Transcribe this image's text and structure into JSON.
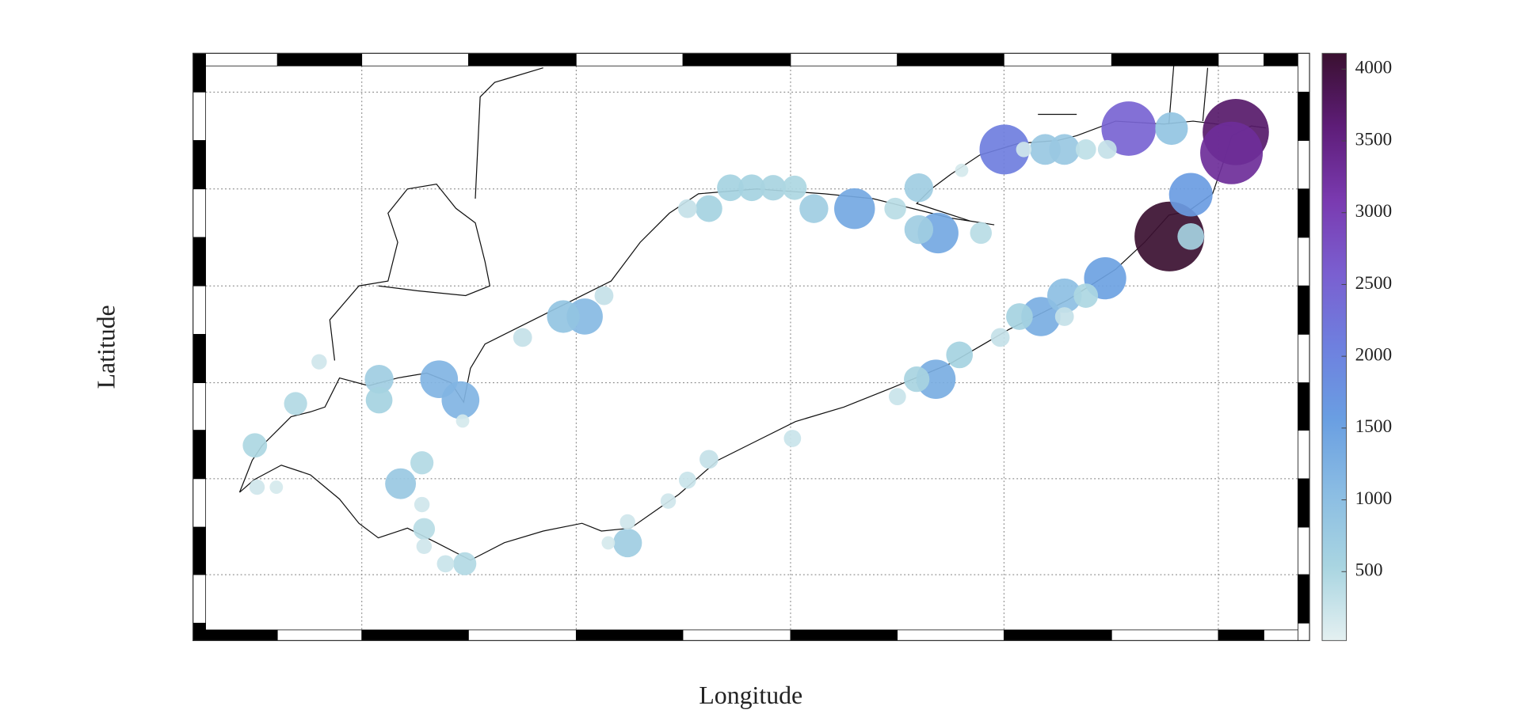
{
  "chart_data": {
    "type": "bubble",
    "x_label": "Longitude",
    "y_label": "Latitude",
    "xlim": [
      -83.73,
      -78.63
    ],
    "ylim": [
      41.28,
      42.9
    ],
    "zlim": [
      20,
      4110
    ],
    "zticks": [
      500,
      1000,
      1500,
      2000,
      2500,
      3000,
      3500,
      4000
    ],
    "grid": true,
    "colormap": [
      "#e4f0f1",
      "#a9d5e1",
      "#8bbde3",
      "#6a9fe2",
      "#6e80df",
      "#7a5fd0",
      "#7a3ab0",
      "#5e1d78",
      "#3a1030"
    ],
    "x": [
      -79.23,
      -78.92,
      -78.94,
      -79.42,
      -80.0,
      -79.13,
      -79.53,
      -80.31,
      -80.7,
      -80.32,
      -79.83,
      -82.64,
      -82.54,
      -81.96,
      -79.72,
      -82.06,
      -79.22,
      -79.72,
      -79.81,
      -80.4,
      -80.4,
      -80.89,
      -81.38,
      -81.28,
      -81.18,
      -81.08,
      -80.98,
      -82.92,
      -82.92,
      -82.82,
      -81.76,
      -80.21,
      -80.41,
      -79.62,
      -79.93,
      -79.13,
      -79.52,
      -83.5,
      -83.31,
      -82.72,
      -82.52,
      -82.71,
      -80.11,
      -80.51,
      -79.62,
      -80.02,
      -82.25,
      -81.87,
      -81.38,
      -80.99,
      -80.5,
      -82.61,
      -81.48,
      -79.72,
      -83.49,
      -81.57,
      -82.72,
      -82.71,
      -81.76,
      -79.91,
      -80.2,
      -82.53,
      -81.85,
      -83.4,
      -83.2,
      -81.48
    ],
    "y": [
      42.41,
      42.71,
      42.65,
      42.72,
      42.66,
      42.53,
      42.29,
      42.42,
      42.49,
      42.0,
      42.18,
      42.0,
      41.94,
      42.18,
      42.24,
      42.18,
      42.72,
      42.66,
      42.66,
      42.55,
      42.43,
      42.49,
      42.49,
      42.55,
      42.55,
      42.55,
      42.55,
      42.0,
      41.94,
      41.7,
      41.53,
      42.07,
      42.0,
      42.24,
      42.18,
      42.41,
      42.66,
      41.81,
      41.93,
      41.76,
      41.47,
      41.57,
      42.42,
      42.49,
      42.66,
      42.12,
      42.12,
      42.24,
      41.77,
      41.83,
      41.95,
      41.47,
      41.71,
      42.18,
      41.69,
      41.65,
      41.64,
      41.52,
      41.59,
      42.66,
      42.6,
      41.88,
      41.53,
      41.69,
      42.05,
      42.49
    ],
    "values": [
      4100,
      3700,
      3300,
      2500,
      2100,
      1600,
      1500,
      1400,
      1400,
      1300,
      1300,
      1200,
      1200,
      1100,
      1000,
      900,
      900,
      800,
      800,
      700,
      700,
      700,
      600,
      600,
      600,
      550,
      500,
      700,
      600,
      800,
      700,
      600,
      550,
      500,
      600,
      600,
      300,
      500,
      450,
      450,
      450,
      400,
      400,
      400,
      350,
      300,
      300,
      300,
      300,
      250,
      250,
      250,
      250,
      300,
      200,
      200,
      200,
      200,
      200,
      200,
      150,
      150,
      150,
      150,
      200,
      300
    ]
  }
}
